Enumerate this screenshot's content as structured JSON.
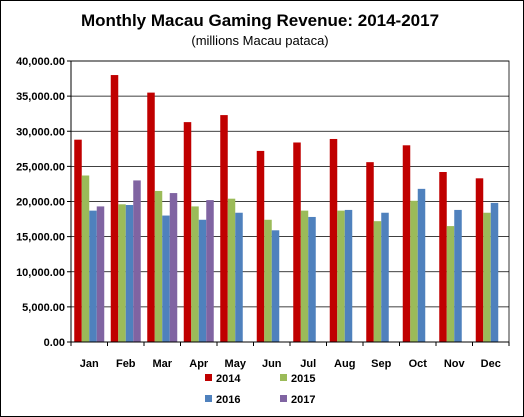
{
  "chart_data": {
    "type": "bar",
    "title": "Monthly Macau Gaming Revenue: 2014-2017",
    "subtitle": "(millions Macau pataca)",
    "xlabel": "",
    "ylabel": "",
    "categories": [
      "Jan",
      "Feb",
      "Mar",
      "Apr",
      "May",
      "Jun",
      "Jul",
      "Aug",
      "Sep",
      "Oct",
      "Nov",
      "Dec"
    ],
    "ylim": [
      0,
      40000
    ],
    "yticks": [
      "0.00",
      "5,000.00",
      "10,000.00",
      "15,000.00",
      "20,000.00",
      "25,000.00",
      "30,000.00",
      "35,000.00",
      "40,000.00"
    ],
    "grid": "horizontal",
    "legend_position": "bottom",
    "series": [
      {
        "name": "2014",
        "color": "#c00000",
        "values": [
          28800,
          38000,
          35500,
          31300,
          32300,
          27200,
          28400,
          28900,
          25600,
          28000,
          24200,
          23300
        ]
      },
      {
        "name": "2015",
        "color": "#9bbb59",
        "values": [
          23700,
          19600,
          21500,
          19300,
          20400,
          17400,
          18700,
          18700,
          17200,
          20100,
          16500,
          18400
        ]
      },
      {
        "name": "2016",
        "color": "#4f81bd",
        "values": [
          18700,
          19500,
          18000,
          17400,
          18400,
          15900,
          17800,
          18800,
          18400,
          21800,
          18800,
          19800
        ]
      },
      {
        "name": "2017",
        "color": "#8064a2",
        "values": [
          19300,
          23000,
          21200,
          20200,
          null,
          null,
          null,
          null,
          null,
          null,
          null,
          null
        ]
      }
    ]
  }
}
